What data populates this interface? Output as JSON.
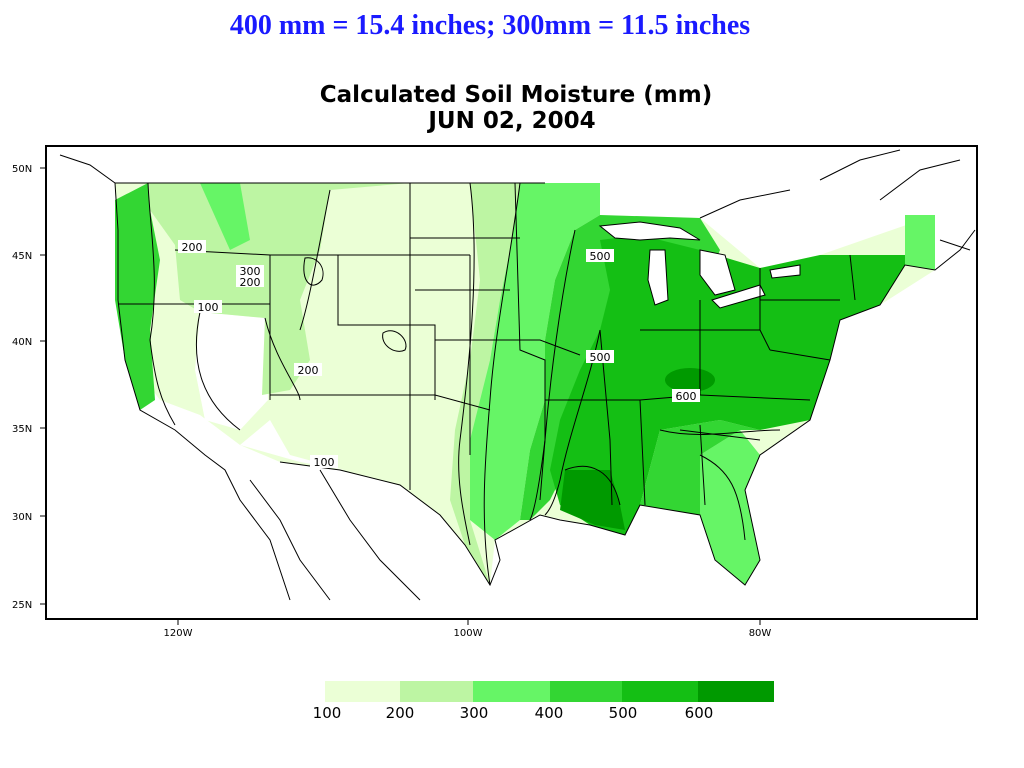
{
  "header": {
    "slide_title": "400 mm = 15.4 inches; 300mm = 11.5 inches",
    "map_title": "Calculated Soil Moisture (mm)",
    "map_date": "JUN 02, 2004"
  },
  "axes": {
    "lat_labels": [
      "50N",
      "45N",
      "40N",
      "35N",
      "30N",
      "25N"
    ],
    "lon_labels": [
      "120W",
      "100W",
      "80W"
    ]
  },
  "contour_labels": [
    "200",
    "300",
    "200",
    "100",
    "200",
    "100",
    "500",
    "500",
    "600"
  ],
  "legend": {
    "labels": [
      "100",
      "200",
      "300",
      "400",
      "500",
      "600"
    ],
    "colors": [
      "#ebffd6",
      "#bdf5a3",
      "#66f566",
      "#33d633",
      "#14bf14",
      "#009a00"
    ]
  },
  "map_colors": {
    "under_100": "#ffffff",
    "100_200": "#ebffd6",
    "200_300": "#bdf5a3",
    "300_400": "#66f566",
    "400_500": "#33d633",
    "500_600": "#14bf14",
    "over_600": "#009a00"
  }
}
